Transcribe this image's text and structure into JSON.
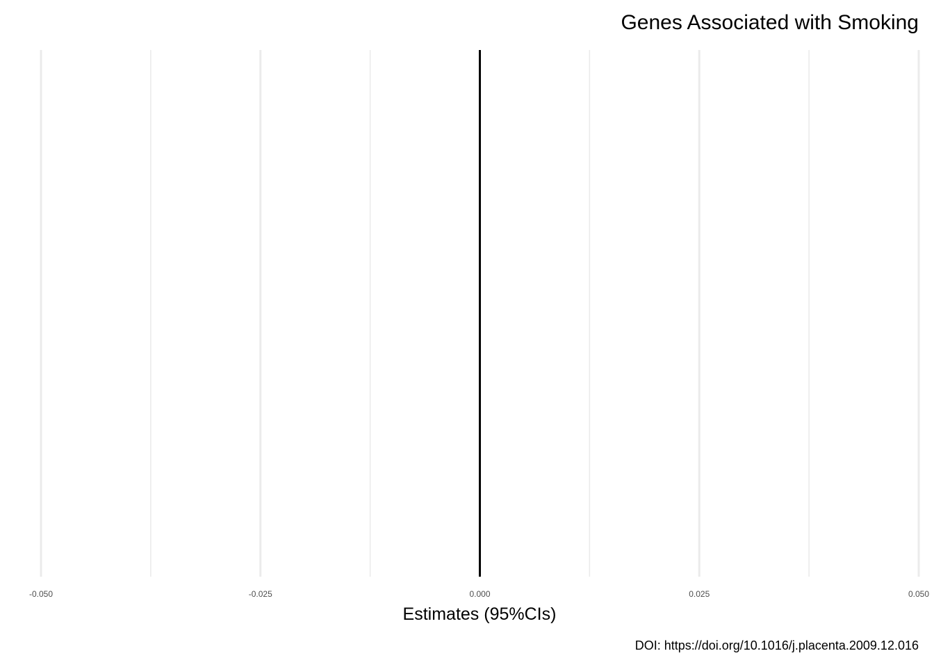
{
  "chart_data": {
    "type": "scatter",
    "title": "Genes Associated with Smoking",
    "xlabel": "Estimates (95%CIs)",
    "ylabel": "",
    "caption": "DOI: https://doi.org/10.1016/j.placenta.2009.12.016",
    "xlim": [
      -0.05,
      0.05
    ],
    "x_ticks": [
      -0.05,
      -0.025,
      0,
      0.025,
      0.05
    ],
    "x_tick_labels": [
      "-0.050",
      "-0.025",
      "0.000",
      "0.025",
      "0.050"
    ],
    "x_minor_ticks": [
      -0.0375,
      -0.0125,
      0.0125,
      0.0375
    ],
    "reference_line_x": 0,
    "grid": true,
    "series": [],
    "colors": {
      "grid": "#ebebeb",
      "reference": "#000000",
      "tick_text": "#4d4d4d"
    }
  }
}
